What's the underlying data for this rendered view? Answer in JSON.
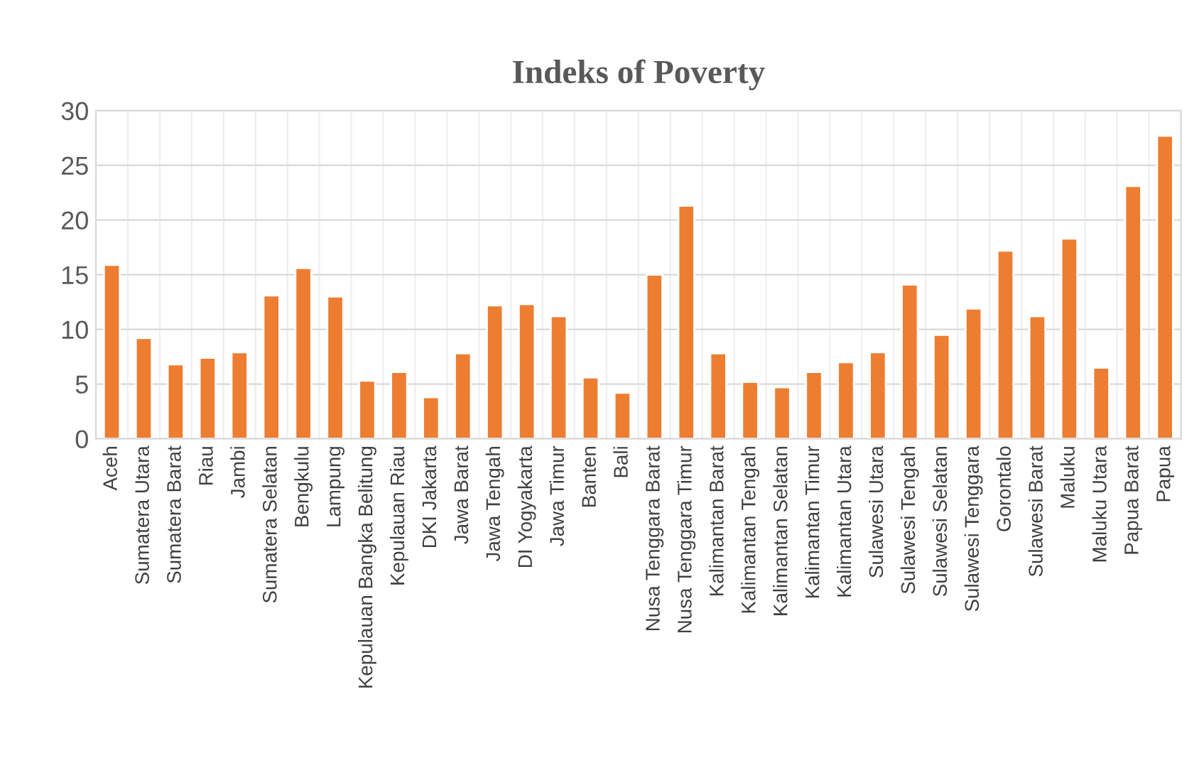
{
  "chart_data": {
    "type": "bar",
    "title": "Indeks of Poverty",
    "categories": [
      "Aceh",
      "Sumatera Utara",
      "Sumatera Barat",
      "Riau",
      "Jambi",
      "Sumatera Selatan",
      "Bengkulu",
      "Lampung",
      "Kepulauan Bangka Belitung",
      "Kepulauan Riau",
      "DKI Jakarta",
      "Jawa Barat",
      "Jawa Tengah",
      "DI Yogyakarta",
      "Jawa Timur",
      "Banten",
      "Bali",
      "Nusa Tenggara Barat",
      "Nusa Tenggara Timur",
      "Kalimantan Barat",
      "Kalimantan Tengah",
      "Kalimantan Selatan",
      "Kalimantan Timur",
      "Kalimantan Utara",
      "Sulawesi Utara",
      "Sulawesi Tengah",
      "Sulawesi Selatan",
      "Sulawesi Tenggara",
      "Gorontalo",
      "Sulawesi Barat",
      "Maluku",
      "Maluku Utara",
      "Papua Barat",
      "Papua"
    ],
    "values": [
      15.9,
      9.2,
      6.8,
      7.4,
      7.9,
      13.1,
      15.6,
      13.0,
      5.3,
      6.1,
      3.8,
      7.8,
      12.2,
      12.3,
      11.2,
      5.6,
      4.2,
      15.0,
      21.3,
      7.8,
      5.2,
      4.7,
      6.1,
      7.0,
      7.9,
      14.1,
      9.5,
      11.9,
      17.2,
      11.2,
      18.3,
      6.5,
      23.1,
      27.7
    ],
    "color": "#ed7d31",
    "ylim": [
      0,
      30
    ],
    "yticks": [
      0,
      5,
      10,
      15,
      20,
      25,
      30
    ],
    "grid": true
  }
}
